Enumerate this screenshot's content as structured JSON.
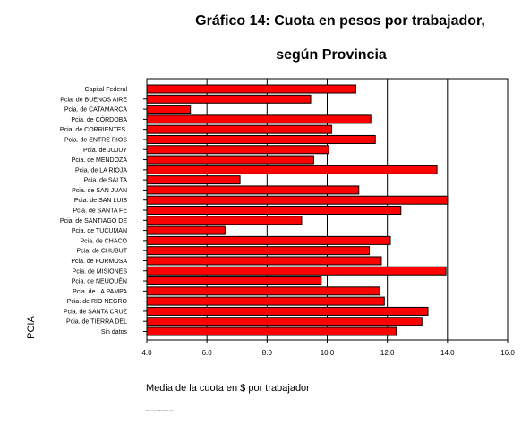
{
  "chart_data": {
    "type": "bar",
    "orientation": "horizontal",
    "title_line1": "Gráfico 14: Cuota en pesos por trabajador,",
    "title_line2": "según Provincia",
    "xlabel": "Media de la cuota en $ por trabajador",
    "ylabel": "PCIA",
    "footnote": "Casos ponderados por",
    "categories": [
      "Capital Federal",
      "Pcia. de BUENOS AIRE",
      "Pcia. de CATAMARCA",
      "Pcia. de CÓRDOBA",
      "Pcia. de CORRIENTES.",
      "Pcia. de ENTRE RIOS",
      "Pcia. de JUJUY",
      "Pcia. de MENDOZA",
      "Pcia. de LA RIOJA",
      "Pcia. de SALTA",
      "Pcia. de SAN JUAN",
      "Pcia. de SAN LUIS",
      "Pcia. de SANTA FE",
      "Pcia. de SANTIAGO DE",
      "Pcia. de TUCUMAN",
      "Pcia. de CHACO",
      "Pcia. de CHUBUT",
      "Pcia. de FORMOSA",
      "Pcia. de MISIONES",
      "Pcia. de NEUQUÉN",
      "Pcia. de LA PAMPA",
      "Pcia. de RIO NEGRO",
      "Pcia. de SANTA CRUZ",
      "Pcia. de TIERRA DEL",
      "Sin datos"
    ],
    "values": [
      10.95,
      9.45,
      5.45,
      11.45,
      10.15,
      11.6,
      10.05,
      9.55,
      13.65,
      7.1,
      11.05,
      14.0,
      12.45,
      9.15,
      6.6,
      12.1,
      11.4,
      11.8,
      13.95,
      9.8,
      11.75,
      11.9,
      13.35,
      13.15,
      12.3
    ],
    "xlim": [
      4.0,
      16.0
    ],
    "xticks": [
      "4.0",
      "6.0",
      "8.0",
      "10.0",
      "12.0",
      "14.0",
      "16.0"
    ],
    "grid": true,
    "bar_color": "#ff0000",
    "bar_edge_color": "#000000",
    "background": "#ffffff"
  }
}
